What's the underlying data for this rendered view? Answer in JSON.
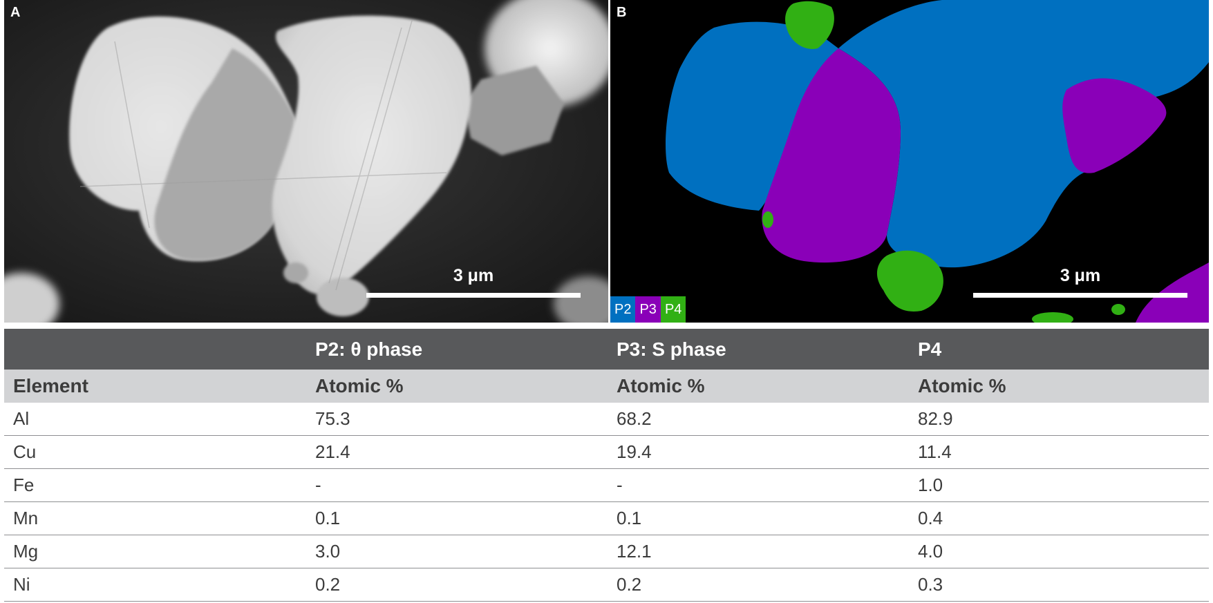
{
  "panel_a": {
    "letter": "A",
    "scale_label": "3 μm"
  },
  "panel_b": {
    "letter": "B",
    "scale_label": "3 μm",
    "legend": [
      {
        "label": "P2",
        "color": "#0070c0"
      },
      {
        "label": "P3",
        "color": "#8a00b8"
      },
      {
        "label": "P4",
        "color": "#31b014"
      }
    ],
    "background_color": "#000000"
  },
  "table": {
    "phase_headers": [
      "",
      "P2: θ phase",
      "P3: S phase",
      "P4"
    ],
    "sub_headers": [
      "Element",
      "Atomic %",
      "Atomic %",
      "Atomic %"
    ],
    "rows": [
      [
        "Al",
        "75.3",
        "68.2",
        "82.9"
      ],
      [
        "Cu",
        "21.4",
        "19.4",
        "11.4"
      ],
      [
        "Fe",
        "-",
        "-",
        "1.0"
      ],
      [
        "Mn",
        "0.1",
        "0.1",
        "0.4"
      ],
      [
        "Mg",
        "3.0",
        "12.1",
        "4.0"
      ],
      [
        "Ni",
        "0.2",
        "0.2",
        "0.3"
      ]
    ],
    "header_color": "#58595b",
    "subheader_color": "#d2d3d5"
  }
}
